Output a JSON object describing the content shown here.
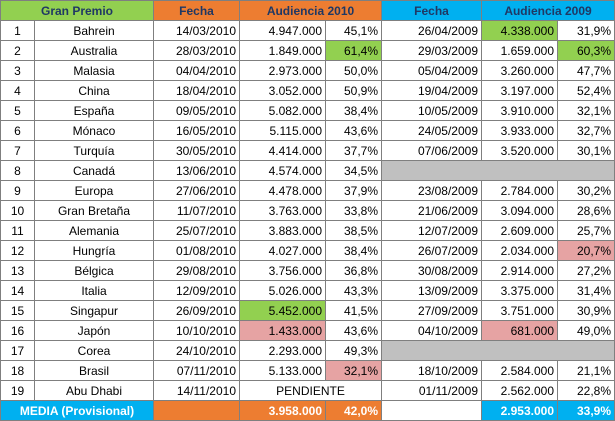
{
  "headers": {
    "gp": "Gran Premio",
    "fecha2010": "Fecha",
    "aud2010": "Audiencia 2010",
    "fecha2009": "Fecha",
    "aud2009": "Audiencia 2009"
  },
  "rows": [
    {
      "n": "1",
      "gp": "Bahrein",
      "f10": "14/03/2010",
      "a10": "4.947.000",
      "p10": "45,1%",
      "f09": "26/04/2009",
      "a09": "4.338.000",
      "p09": "31,9%"
    },
    {
      "n": "2",
      "gp": "Australia",
      "f10": "28/03/2010",
      "a10": "1.849.000",
      "p10": "61,4%",
      "f09": "29/03/2009",
      "a09": "1.659.000",
      "p09": "60,3%"
    },
    {
      "n": "3",
      "gp": "Malasia",
      "f10": "04/04/2010",
      "a10": "2.973.000",
      "p10": "50,0%",
      "f09": "05/04/2009",
      "a09": "3.260.000",
      "p09": "47,7%"
    },
    {
      "n": "4",
      "gp": "China",
      "f10": "18/04/2010",
      "a10": "3.052.000",
      "p10": "50,9%",
      "f09": "19/04/2009",
      "a09": "3.197.000",
      "p09": "52,4%"
    },
    {
      "n": "5",
      "gp": "España",
      "f10": "09/05/2010",
      "a10": "5.082.000",
      "p10": "38,4%",
      "f09": "10/05/2009",
      "a09": "3.910.000",
      "p09": "32,1%"
    },
    {
      "n": "6",
      "gp": "Mónaco",
      "f10": "16/05/2010",
      "a10": "5.115.000",
      "p10": "43,6%",
      "f09": "24/05/2009",
      "a09": "3.933.000",
      "p09": "32,7%"
    },
    {
      "n": "7",
      "gp": "Turquía",
      "f10": "30/05/2010",
      "a10": "4.414.000",
      "p10": "37,7%",
      "f09": "07/06/2009",
      "a09": "3.520.000",
      "p09": "30,1%"
    },
    {
      "n": "8",
      "gp": "Canadá",
      "f10": "13/06/2010",
      "a10": "4.574.000",
      "p10": "34,5%",
      "f09": "",
      "a09": "",
      "p09": ""
    },
    {
      "n": "9",
      "gp": "Europa",
      "f10": "27/06/2010",
      "a10": "4.478.000",
      "p10": "37,9%",
      "f09": "23/08/2009",
      "a09": "2.784.000",
      "p09": "30,2%"
    },
    {
      "n": "10",
      "gp": "Gran Bretaña",
      "f10": "11/07/2010",
      "a10": "3.763.000",
      "p10": "33,8%",
      "f09": "21/06/2009",
      "a09": "3.094.000",
      "p09": "28,6%"
    },
    {
      "n": "11",
      "gp": "Alemania",
      "f10": "25/07/2010",
      "a10": "3.883.000",
      "p10": "38,5%",
      "f09": "12/07/2009",
      "a09": "2.609.000",
      "p09": "25,7%"
    },
    {
      "n": "12",
      "gp": "Hungría",
      "f10": "01/08/2010",
      "a10": "4.027.000",
      "p10": "38,4%",
      "f09": "26/07/2009",
      "a09": "2.034.000",
      "p09": "20,7%"
    },
    {
      "n": "13",
      "gp": "Bélgica",
      "f10": "29/08/2010",
      "a10": "3.756.000",
      "p10": "36,8%",
      "f09": "30/08/2009",
      "a09": "2.914.000",
      "p09": "27,2%"
    },
    {
      "n": "14",
      "gp": "Italia",
      "f10": "12/09/2010",
      "a10": "5.026.000",
      "p10": "43,3%",
      "f09": "13/09/2009",
      "a09": "3.375.000",
      "p09": "31,4%"
    },
    {
      "n": "15",
      "gp": "Singapur",
      "f10": "26/09/2010",
      "a10": "5.452.000",
      "p10": "41,5%",
      "f09": "27/09/2009",
      "a09": "3.751.000",
      "p09": "30,9%"
    },
    {
      "n": "16",
      "gp": "Japón",
      "f10": "10/10/2010",
      "a10": "1.433.000",
      "p10": "43,6%",
      "f09": "04/10/2009",
      "a09": "681.000",
      "p09": "49,0%"
    },
    {
      "n": "17",
      "gp": "Corea",
      "f10": "24/10/2010",
      "a10": "2.293.000",
      "p10": "49,3%",
      "f09": "",
      "a09": "",
      "p09": ""
    },
    {
      "n": "18",
      "gp": "Brasil",
      "f10": "07/11/2010",
      "a10": "5.133.000",
      "p10": "32,1%",
      "f09": "18/10/2009",
      "a09": "2.584.000",
      "p09": "21,1%"
    },
    {
      "n": "19",
      "gp": "Abu Dhabi",
      "f10": "14/11/2010",
      "pendiente": "PENDIENTE",
      "f09": "01/11/2009",
      "a09": "2.562.000",
      "p09": "22,8%"
    }
  ],
  "media": {
    "label": "MEDIA (Provisional)",
    "a10": "3.958.000",
    "p10": "42,0%",
    "a09": "2.953.000",
    "p09": "33,9%"
  },
  "colors": {
    "header_green": "#92d050",
    "header_orange": "#ed7d31",
    "header_blue": "#00b0f0",
    "highlight_green": "#92d050",
    "highlight_red": "#e6a3a3",
    "no_race_gray": "#c0c0c0"
  }
}
